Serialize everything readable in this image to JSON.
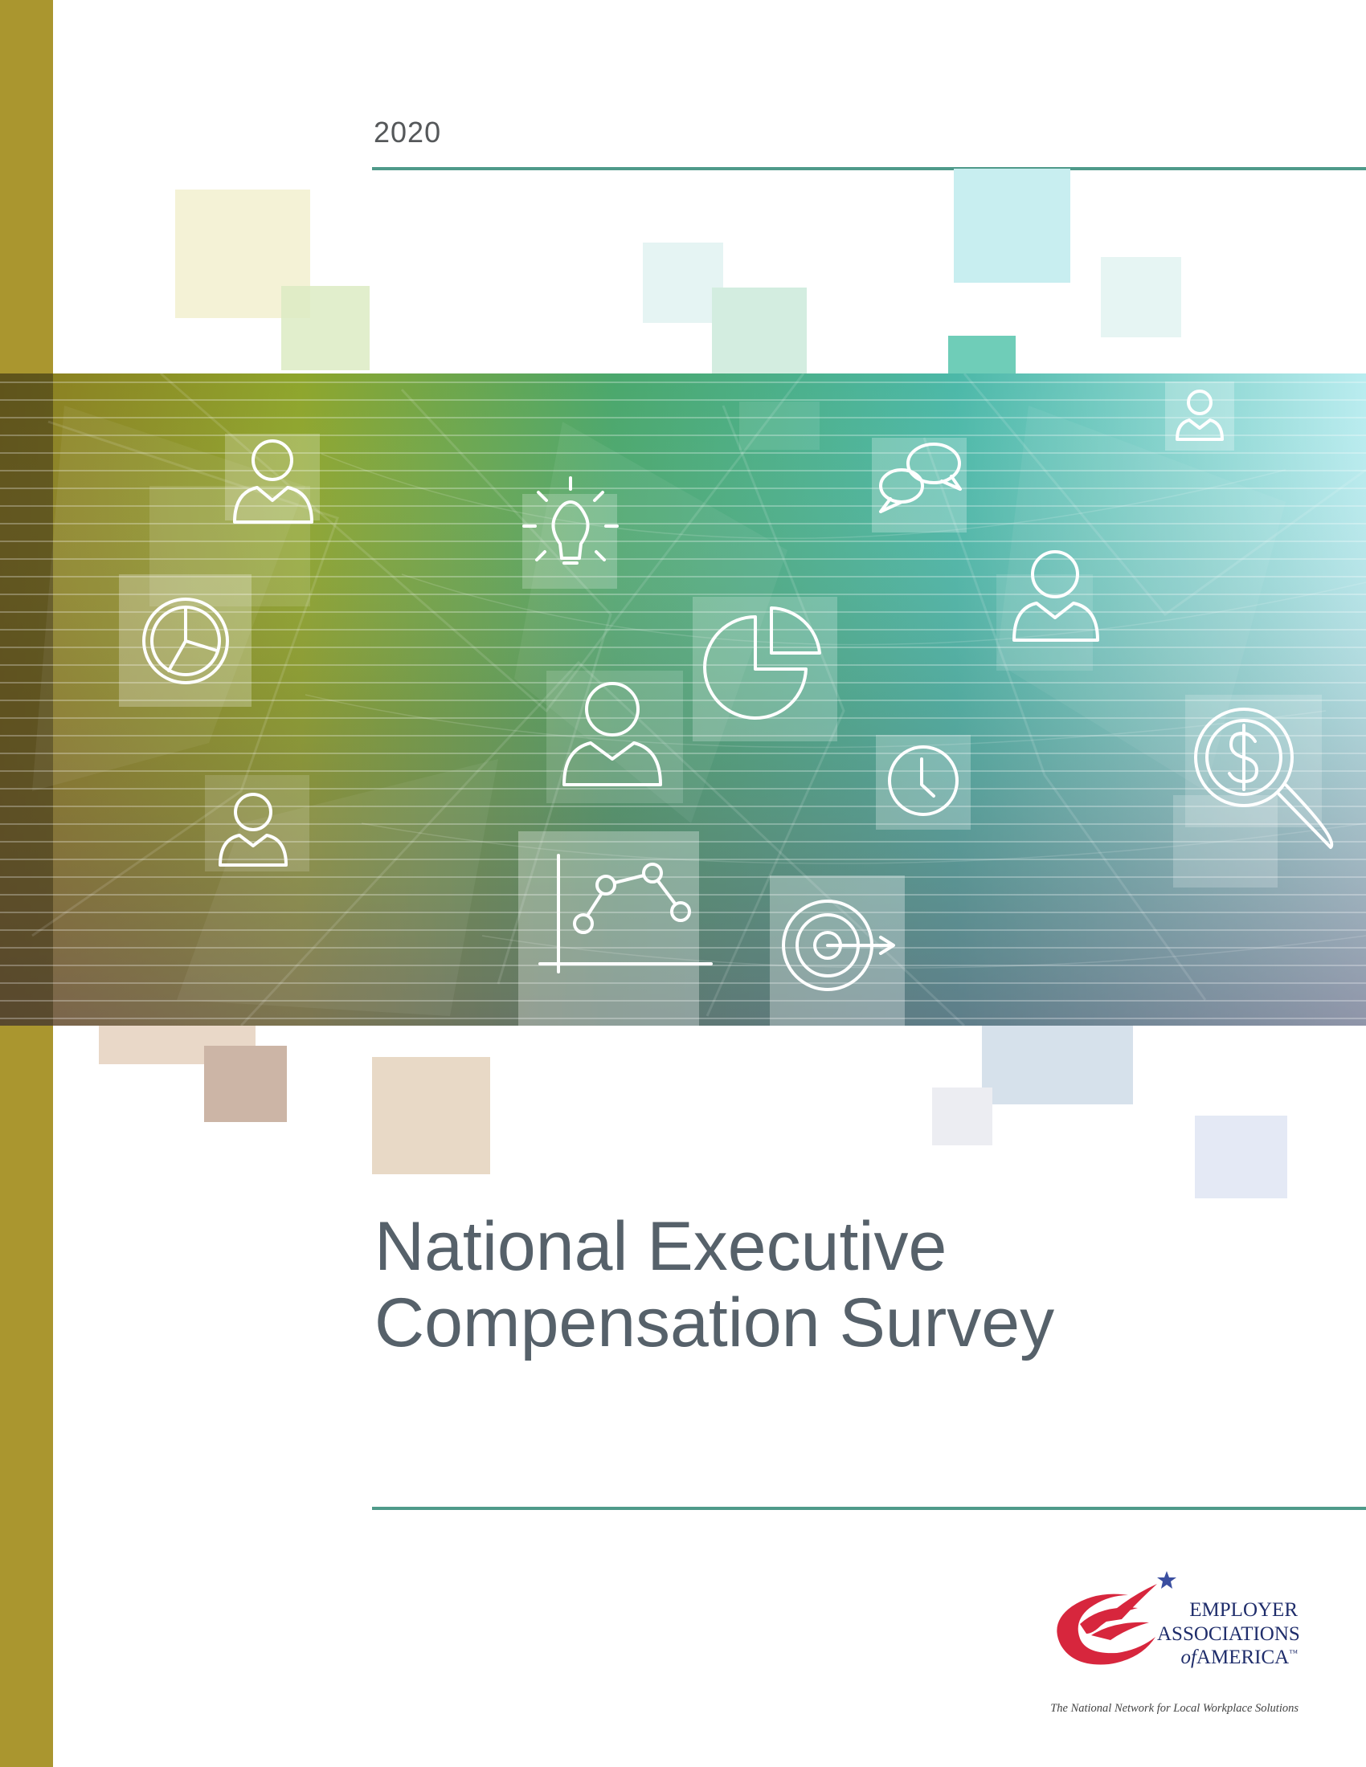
{
  "cover": {
    "year": "2020",
    "title_line1": "National Executive",
    "title_line2": "Compensation Survey"
  },
  "logo": {
    "line1": "EMPLOYER",
    "line2": "ASSOCIATIONS",
    "line3_prefix": "of",
    "line3": "AMERICA",
    "trademark": "™",
    "tagline": "The National Network for Local Workplace Solutions"
  },
  "colors": {
    "sidebar": "#aa962f",
    "rule": "#4f9a8a",
    "title": "#56616a",
    "logo_red": "#d7263d",
    "logo_navy": "#1f2d6b"
  },
  "banner_icons": [
    "person-icon",
    "lightbulb-icon",
    "chat-icon",
    "pie-chart-icon",
    "clock-icon",
    "dollar-search-icon",
    "line-chart-icon",
    "target-icon"
  ]
}
